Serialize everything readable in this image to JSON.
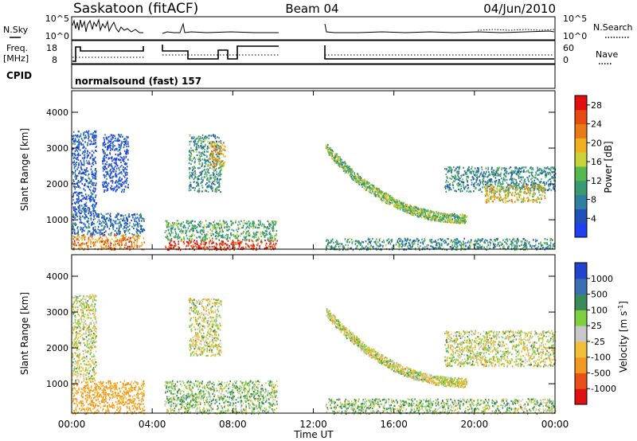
{
  "header": {
    "station": "Saskatoon (fitACF)",
    "beam": "Beam 04",
    "date": "04/Jun/2010"
  },
  "nsky_panel": {
    "left_label": "N.Sky",
    "right_label": "N.Search",
    "ticks": [
      "10^5",
      "10^0"
    ]
  },
  "freq_panel": {
    "left_label_1": "Freq.",
    "left_label_2": "[MHz]",
    "left_ticks": [
      "18",
      "8"
    ],
    "right_label": "Nave",
    "right_ticks": [
      "60",
      "0"
    ]
  },
  "cpid": {
    "label": "CPID",
    "value": "normalsound (fast) 157"
  },
  "colors": {
    "power_scale": [
      "#1f3ff0",
      "#2150b8",
      "#2f7fa0",
      "#3a9a70",
      "#55b850",
      "#c8d23a",
      "#f0b020",
      "#e87a18",
      "#e84a14",
      "#e01010"
    ],
    "velocity_scale": [
      "#2244cc",
      "#3b6eb3",
      "#3a8a5a",
      "#7ed040",
      "#c8c8c8",
      "#f2c038",
      "#f09820",
      "#e8501a",
      "#e01010"
    ]
  },
  "chart_data": [
    {
      "type": "heatmap",
      "title": "",
      "xlabel": "Time UT",
      "ylabel": "Slant Range [km]",
      "xticks": [
        "00:00",
        "04:00",
        "08:00",
        "12:00",
        "16:00",
        "20:00",
        "00:00"
      ],
      "yticks": [
        "1000",
        "2000",
        "3000",
        "4000"
      ],
      "ylim": [
        180,
        4600
      ],
      "xlim_hours": [
        0,
        24
      ],
      "colorbar": {
        "label": "Power [dB]",
        "ticks": [
          "4",
          "8",
          "12",
          "16",
          "20",
          "24",
          "28"
        ],
        "range": [
          0,
          30
        ]
      },
      "echo_regions": [
        {
          "t_start": 0.0,
          "t_end": 3.6,
          "r_start": 180,
          "r_end": 600,
          "value": 22
        },
        {
          "t_start": 0.0,
          "t_end": 3.6,
          "r_start": 600,
          "r_end": 1200,
          "value": 6
        },
        {
          "t_start": 0.0,
          "t_end": 1.2,
          "r_start": 1200,
          "r_end": 3500,
          "value": 4
        },
        {
          "t_start": 1.5,
          "t_end": 2.8,
          "r_start": 1800,
          "r_end": 3400,
          "value": 3
        },
        {
          "t_start": 4.6,
          "t_end": 10.2,
          "r_start": 180,
          "r_end": 450,
          "value": 28
        },
        {
          "t_start": 4.6,
          "t_end": 10.2,
          "r_start": 450,
          "r_end": 1000,
          "value": 12
        },
        {
          "t_start": 5.8,
          "t_end": 7.4,
          "r_start": 1800,
          "r_end": 3400,
          "value": 10
        },
        {
          "t_start": 6.8,
          "t_end": 7.6,
          "r_start": 2500,
          "r_end": 3200,
          "value": 20
        },
        {
          "t_start": 12.6,
          "t_end": 24.0,
          "r_start": 180,
          "r_end": 500,
          "value": 10
        },
        {
          "t_start": 18.5,
          "t_end": 24.0,
          "r_start": 1800,
          "r_end": 2500,
          "value": 9
        },
        {
          "t_start": 20.5,
          "t_end": 23.5,
          "r_start": 1500,
          "r_end": 2000,
          "value": 18
        }
      ],
      "echo_arc": {
        "t_start": 12.6,
        "t_end": 19.5,
        "r_start": 3000,
        "r_end": 1050,
        "value": 14
      }
    },
    {
      "type": "heatmap",
      "title": "",
      "xlabel": "Time UT",
      "ylabel": "Slant Range [km]",
      "xticks": [
        "00:00",
        "04:00",
        "08:00",
        "12:00",
        "16:00",
        "20:00",
        "00:00"
      ],
      "yticks": [
        "1000",
        "2000",
        "3000",
        "4000"
      ],
      "ylim": [
        180,
        4600
      ],
      "xlim_hours": [
        0,
        24
      ],
      "colorbar": {
        "label": "Velocity [m s^-1]",
        "ticks": [
          "1000",
          "500",
          "100",
          "25",
          "-25",
          "-100",
          "-500",
          "-1000"
        ]
      },
      "echo_regions": [
        {
          "t_start": 0.0,
          "t_end": 3.6,
          "r_start": 180,
          "r_end": 1100,
          "value": -150
        },
        {
          "t_start": 0.0,
          "t_end": 1.2,
          "r_start": 1100,
          "r_end": 3500,
          "value": 0
        },
        {
          "t_start": 4.6,
          "t_end": 10.2,
          "r_start": 180,
          "r_end": 1100,
          "value": 60
        },
        {
          "t_start": 5.8,
          "t_end": 7.4,
          "r_start": 1800,
          "r_end": 3400,
          "value": 0
        },
        {
          "t_start": 12.6,
          "t_end": 24.0,
          "r_start": 180,
          "r_end": 600,
          "value": 60
        },
        {
          "t_start": 18.5,
          "t_end": 24.0,
          "r_start": 1500,
          "r_end": 2500,
          "value": 0
        }
      ],
      "echo_arc": {
        "t_start": 12.6,
        "t_end": 19.5,
        "r_start": 3000,
        "r_end": 1050,
        "value": 0
      }
    }
  ]
}
